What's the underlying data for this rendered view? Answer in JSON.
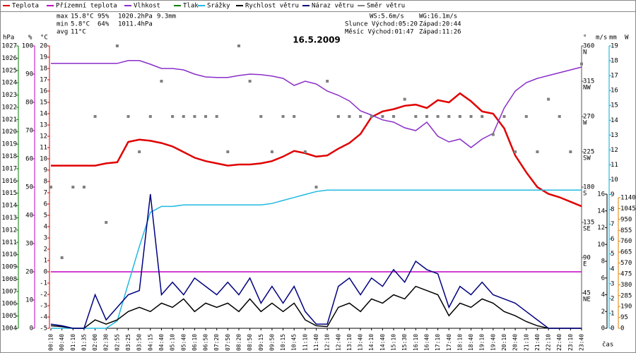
{
  "chart_data": {
    "type": "line",
    "title": "16.5.2009",
    "x_label": "čas",
    "categories": [
      "00:10",
      "00:40",
      "01:10",
      "01:35",
      "02:00",
      "02:30",
      "02:55",
      "03:25",
      "03:50",
      "04:15",
      "04:40",
      "05:10",
      "05:40",
      "06:10",
      "06:50",
      "07:20",
      "07:50",
      "08:20",
      "08:50",
      "09:15",
      "09:50",
      "10:15",
      "10:45",
      "11:10",
      "11:40",
      "12:10",
      "12:40",
      "13:10",
      "13:40",
      "14:10",
      "14:40",
      "15:10",
      "15:30",
      "16:10",
      "16:40",
      "17:10",
      "17:40",
      "18:10",
      "18:40",
      "19:10",
      "19:40",
      "20:10",
      "20:40",
      "21:10",
      "21:40",
      "22:10",
      "22:40",
      "23:10",
      "23:40"
    ],
    "axes": {
      "pressure": {
        "unit": "hPa",
        "color": "#008000",
        "ylim": [
          1004,
          1027
        ],
        "yticks": [
          1004,
          1005,
          1006,
          1007,
          1008,
          1009,
          1010,
          1011,
          1012,
          1013,
          1014,
          1015,
          1016,
          1017,
          1018,
          1019,
          1020,
          1021,
          1022,
          1023,
          1024,
          1025,
          1026,
          1027
        ]
      },
      "humidity": {
        "unit": "%",
        "color": "#c000c0",
        "ylim": [
          0,
          100
        ],
        "yticks": [
          0,
          10,
          20,
          30,
          40,
          50,
          60,
          70,
          80,
          90,
          100
        ]
      },
      "temperature": {
        "unit": "°C",
        "color": "#e00000",
        "ylim": [
          -5,
          20
        ],
        "yticks": [
          -5,
          -4,
          -3,
          -2,
          -1,
          0,
          1,
          2,
          3,
          4,
          5,
          6,
          7,
          8,
          9,
          10,
          11,
          12,
          13,
          14,
          15,
          16,
          17,
          18,
          19,
          20
        ]
      },
      "direction": {
        "unit": "°",
        "color": "#555555",
        "ylim": [
          0,
          360
        ],
        "yticks": [
          45,
          90,
          135,
          180,
          225,
          270,
          315,
          360
        ],
        "compass": [
          "NE",
          "E",
          "SE",
          "S",
          "SW",
          "W",
          "NW",
          "N"
        ]
      },
      "wind": {
        "unit": "m/s",
        "color": "#000000",
        "ylim": [
          0,
          16
        ],
        "yticks": [
          0,
          2,
          4,
          6,
          8,
          10,
          12,
          14,
          16
        ]
      },
      "rain": {
        "unit": "mm",
        "color": "#00a8d8",
        "ylim": [
          0,
          19
        ],
        "yticks": [
          0,
          1,
          2,
          3,
          4,
          5,
          6,
          7,
          8,
          9,
          10,
          11,
          12,
          13,
          14,
          15,
          16,
          17,
          18,
          19
        ]
      },
      "power": {
        "unit": "W",
        "color": "#e08000",
        "ylim": [
          0,
          1140
        ],
        "yticks": [
          0,
          95,
          190,
          285,
          380,
          475,
          570,
          665,
          760,
          855,
          950,
          1045,
          1140
        ]
      }
    },
    "series": [
      {
        "name": "Teplota",
        "color": "#e00000",
        "axis": "temperature",
        "values": [
          9.4,
          9.4,
          9.4,
          9.4,
          9.4,
          9.6,
          9.7,
          11.5,
          11.7,
          11.6,
          11.4,
          11.1,
          10.6,
          10.1,
          9.8,
          9.6,
          9.4,
          9.5,
          9.5,
          9.6,
          9.8,
          10.2,
          10.7,
          10.5,
          10.2,
          10.3,
          10.9,
          11.4,
          12.2,
          13.7,
          14.2,
          14.4,
          14.7,
          14.8,
          14.5,
          15.2,
          15.0,
          15.8,
          15.1,
          14.2,
          14.0,
          12.7,
          10.3,
          8.8,
          7.5,
          6.9,
          6.6,
          6.2,
          5.8
        ]
      },
      {
        "name": "Přízemní teplota",
        "color": "#c000c0",
        "axis": "temperature",
        "values": [
          0,
          0,
          0,
          0,
          0,
          0,
          0,
          0,
          0,
          0,
          0,
          0,
          0,
          0,
          0,
          0,
          0,
          0,
          0,
          0,
          0,
          0,
          0,
          0,
          0,
          0,
          0,
          0,
          0,
          0,
          0,
          0,
          0,
          0,
          0,
          0,
          0,
          0,
          0,
          0,
          0,
          0,
          0,
          0,
          0,
          0,
          0,
          0,
          0
        ]
      },
      {
        "name": "Vlhkost",
        "color": "#8a2ec8",
        "axis": "humidity",
        "values": [
          93.8,
          93.8,
          93.8,
          93.8,
          93.8,
          93.8,
          93.8,
          94.8,
          94.8,
          93.5,
          92,
          92,
          91.5,
          90,
          89,
          88.8,
          88.8,
          89.5,
          90,
          89.8,
          89.3,
          88.5,
          86,
          87.5,
          86.5,
          84,
          82.5,
          80.5,
          77,
          75.5,
          73.8,
          73,
          71,
          70,
          73,
          68,
          66,
          67,
          64,
          67,
          69,
          78,
          84,
          87,
          88.5,
          89.5,
          90.5,
          91.5,
          92.5
        ]
      },
      {
        "name": "Tlak",
        "color": "#008000",
        "axis": "pressure",
        "values": [
          null,
          null,
          null,
          null,
          null,
          null,
          null,
          null,
          null,
          null,
          null,
          null,
          null,
          null,
          null,
          null,
          null,
          null,
          null,
          null,
          null,
          null,
          null,
          null,
          null,
          null,
          null,
          null,
          null,
          null,
          null,
          null,
          null,
          null,
          null,
          null,
          null,
          null,
          null,
          null,
          null,
          null,
          null,
          null,
          null,
          null,
          null,
          null,
          null
        ]
      },
      {
        "name": "Srážky",
        "color": "#20b8e0",
        "axis": "rain",
        "values": [
          0,
          0,
          0,
          0,
          0,
          0,
          0.5,
          3,
          5.5,
          7.8,
          8.2,
          8.2,
          8.3,
          8.3,
          8.3,
          8.3,
          8.3,
          8.3,
          8.3,
          8.3,
          8.4,
          8.6,
          8.8,
          9.0,
          9.2,
          9.3,
          9.3,
          9.3,
          9.3,
          9.3,
          9.3,
          9.3,
          9.3,
          9.3,
          9.3,
          9.3,
          9.3,
          9.3,
          9.3,
          9.3,
          9.3,
          9.3,
          9.3,
          9.3,
          9.3,
          9.3,
          9.3,
          9.3,
          9.3
        ]
      },
      {
        "name": "Rychlost větru",
        "color": "#000000",
        "axis": "wind",
        "values": [
          0.3,
          0.2,
          0,
          0,
          1,
          0.5,
          1,
          2,
          2.5,
          2,
          3,
          2.5,
          3.5,
          2,
          3,
          2.5,
          3,
          2,
          3.5,
          2,
          3,
          2,
          3,
          1,
          0.3,
          0.2,
          2.5,
          3,
          2,
          3.5,
          3,
          4,
          3.5,
          5,
          4.5,
          4,
          1.5,
          3,
          2.5,
          3.5,
          3,
          2,
          1.5,
          0.8,
          0.3,
          0,
          0,
          0,
          0
        ]
      },
      {
        "name": "Náraz větru",
        "color": "#000080",
        "axis": "wind",
        "values": [
          0.5,
          0.3,
          0,
          0,
          4,
          1,
          2.5,
          4,
          4.5,
          16,
          4,
          5.5,
          4,
          6,
          5,
          4,
          5.5,
          4,
          6,
          3,
          5,
          3,
          5,
          2,
          0.5,
          0.5,
          5,
          6,
          4,
          6,
          5,
          7,
          5.5,
          8,
          7,
          6.5,
          2.5,
          5,
          4,
          5.5,
          4,
          3.5,
          3,
          2,
          1,
          0,
          0,
          0,
          0
        ]
      },
      {
        "name": "Směr větru",
        "color": "#808080",
        "axis": "direction",
        "style": "squares",
        "values": [
          180,
          90,
          180,
          180,
          270,
          135,
          360,
          270,
          225,
          270,
          315,
          270,
          270,
          270,
          270,
          270,
          225,
          360,
          315,
          270,
          225,
          270,
          270,
          225,
          180,
          315,
          270,
          270,
          270,
          270,
          270,
          270,
          292,
          270,
          270,
          270,
          270,
          270,
          270,
          270,
          247,
          270,
          225,
          270,
          225,
          292,
          270,
          225,
          337
        ]
      }
    ],
    "stats": [
      {
        "label": "max",
        "values": [
          "15.8°C",
          "95%",
          "1020.2hPa",
          "9.3mm"
        ]
      },
      {
        "label": "min",
        "values": [
          "5.8°C",
          "64%",
          "1011.4hPa"
        ]
      },
      {
        "label": "avg",
        "values": [
          "11°C"
        ]
      }
    ],
    "stat_colors": [
      "#e00000",
      "#c000c0",
      "#3030c0",
      "#00a8d8"
    ],
    "info": [
      "WS:5.6m/s",
      "WG:16.1m/s",
      "Slunce Východ:05:20",
      "Západ:20:44",
      "Měsíc Východ:01:47",
      "Západ:11:26"
    ]
  }
}
